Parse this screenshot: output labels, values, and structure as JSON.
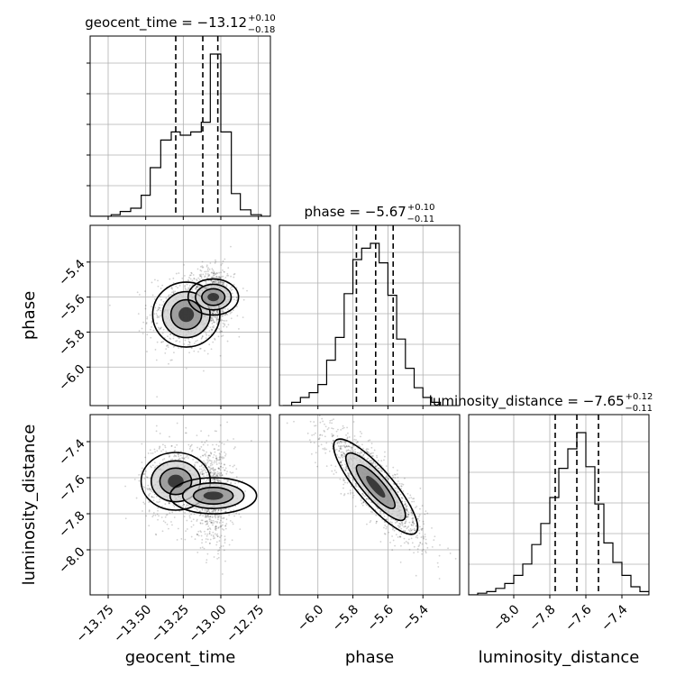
{
  "chart_data": {
    "type": "corner",
    "grid": true,
    "parameters": [
      {
        "name": "geocent_time",
        "label": "geocent_time",
        "median": "−13.12",
        "plus": "+0.10",
        "minus": "−0.18",
        "title_prefix": "geocent_time = ",
        "range": [
          -13.87,
          -12.67
        ],
        "ticks": [
          -13.75,
          -13.5,
          -13.25,
          -13.0,
          -12.75
        ],
        "tick_labels": [
          "−13.75",
          "−13.50",
          "−13.25",
          "−13.00",
          "−12.75"
        ],
        "quantiles": [
          -13.3,
          -13.12,
          -13.02
        ],
        "hist_bins": [
          -13.87,
          -13.8,
          -13.73,
          -13.67,
          -13.6,
          -13.53,
          -13.47,
          -13.4,
          -13.33,
          -13.27,
          -13.2,
          -13.13,
          -13.07,
          -13.0,
          -12.93,
          -12.87,
          -12.8,
          -12.73,
          -12.67
        ],
        "hist_heights": [
          0.0,
          0.0,
          0.01,
          0.03,
          0.05,
          0.13,
          0.3,
          0.47,
          0.52,
          0.5,
          0.52,
          0.58,
          1.0,
          0.52,
          0.14,
          0.04,
          0.01,
          0.0
        ]
      },
      {
        "name": "phase",
        "label": "phase",
        "median": "−5.67",
        "plus": "+0.10",
        "minus": "−0.11",
        "title_prefix": "phase = ",
        "range": [
          -6.22,
          -5.19
        ],
        "ticks": [
          -6.0,
          -5.8,
          -5.6,
          -5.4
        ],
        "tick_labels": [
          "−6.0",
          "−5.8",
          "−5.6",
          "−5.4"
        ],
        "quantiles": [
          -5.78,
          -5.67,
          -5.57
        ],
        "hist_bins": [
          -6.2,
          -6.15,
          -6.1,
          -6.05,
          -6.0,
          -5.95,
          -5.9,
          -5.85,
          -5.8,
          -5.75,
          -5.7,
          -5.65,
          -5.6,
          -5.55,
          -5.5,
          -5.45,
          -5.4,
          -5.35,
          -5.3
        ],
        "hist_heights": [
          0.0,
          0.02,
          0.05,
          0.08,
          0.13,
          0.28,
          0.42,
          0.69,
          0.9,
          0.97,
          1.0,
          0.88,
          0.68,
          0.41,
          0.23,
          0.11,
          0.05,
          0.02
        ]
      },
      {
        "name": "luminosity_distance",
        "label": "luminosity_distance",
        "median": "−7.65",
        "plus": "+0.12",
        "minus": "−0.11",
        "title_prefix": "luminosity_distance = ",
        "range": [
          -8.25,
          -7.25
        ],
        "ticks": [
          -8.0,
          -7.8,
          -7.6,
          -7.4
        ],
        "tick_labels": [
          "−8.0",
          "−7.8",
          "−7.6",
          "−7.4"
        ],
        "quantiles": [
          -7.77,
          -7.65,
          -7.53
        ],
        "hist_bins": [
          -8.25,
          -8.2,
          -8.15,
          -8.1,
          -8.05,
          -8.0,
          -7.95,
          -7.9,
          -7.85,
          -7.8,
          -7.75,
          -7.7,
          -7.65,
          -7.6,
          -7.55,
          -7.5,
          -7.45,
          -7.4,
          -7.35,
          -7.3,
          -7.25
        ],
        "hist_heights": [
          0.0,
          0.01,
          0.02,
          0.04,
          0.07,
          0.12,
          0.19,
          0.31,
          0.44,
          0.6,
          0.78,
          0.9,
          1.0,
          0.79,
          0.56,
          0.32,
          0.2,
          0.12,
          0.05,
          0.02
        ]
      }
    ],
    "density_peaks": [
      {
        "row": 1,
        "col": 0,
        "blobs": [
          {
            "x": -13.23,
            "y": -5.7,
            "sx": 0.09,
            "sy": 0.08,
            "w": 1.0
          },
          {
            "x": -13.05,
            "y": -5.6,
            "sx": 0.05,
            "sy": 0.06,
            "w": 1.3
          }
        ]
      },
      {
        "row": 2,
        "col": 0,
        "blobs": [
          {
            "x": -13.3,
            "y": -7.62,
            "sx": 0.08,
            "sy": 0.08,
            "w": 1.0
          },
          {
            "x": -13.05,
            "y": -7.7,
            "sx": 0.05,
            "sy": 0.1,
            "w": 1.2
          }
        ]
      },
      {
        "row": 2,
        "col": 1,
        "blobs": [
          {
            "x": -5.67,
            "y": -7.65,
            "sx": 0.1,
            "sy": 0.11,
            "w": 1.0,
            "rho": -0.85
          }
        ]
      }
    ]
  }
}
